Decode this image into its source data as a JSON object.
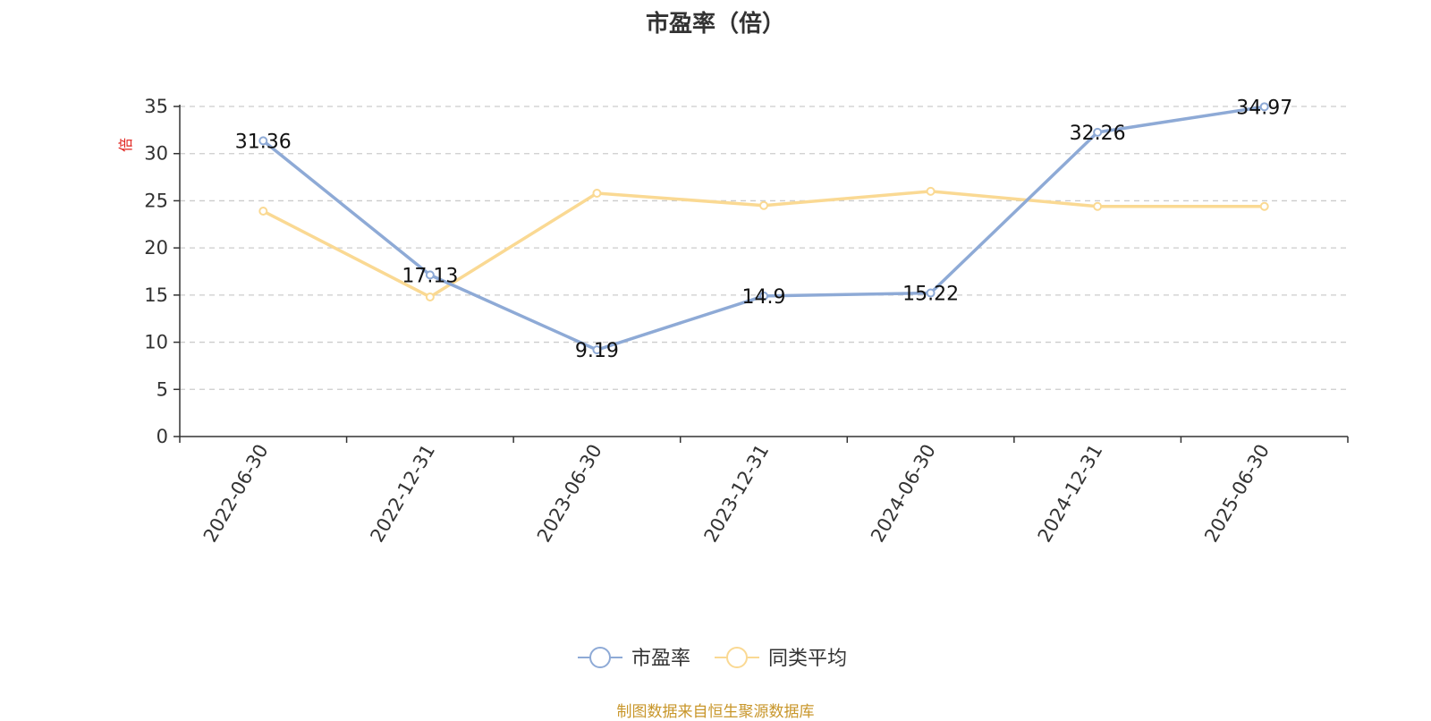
{
  "title": "市盈率（倍）",
  "source_note": "制图数据来自恒生聚源数据库",
  "colors": {
    "pe_series": "#8eaad6",
    "avg_series": "#fad993",
    "axis": "#333333",
    "grid": "#cccccc",
    "unit": "#e0201b",
    "source": "#c8962a"
  },
  "chart_data": {
    "type": "line",
    "title": "市盈率（倍）",
    "ylabel": "倍",
    "xlabel": "",
    "ylim": [
      0,
      35
    ],
    "yticks": [
      0,
      5,
      10,
      15,
      20,
      25,
      30,
      35
    ],
    "grid": true,
    "legend_position": "bottom",
    "categories": [
      "2022-06-30",
      "2022-12-31",
      "2023-06-30",
      "2023-12-31",
      "2024-06-30",
      "2024-12-31",
      "2025-06-30"
    ],
    "series": [
      {
        "name": "市盈率",
        "values": [
          31.36,
          17.13,
          9.19,
          14.9,
          15.22,
          32.26,
          34.97
        ],
        "labels": [
          "31.36",
          "17.13",
          "9.19",
          "14.9",
          "15.22",
          "32.26",
          "34.97"
        ],
        "color": "#8eaad6"
      },
      {
        "name": "同类平均",
        "values": [
          23.9,
          14.8,
          25.8,
          24.5,
          26.0,
          24.4,
          24.4
        ],
        "color": "#fad993"
      }
    ]
  }
}
